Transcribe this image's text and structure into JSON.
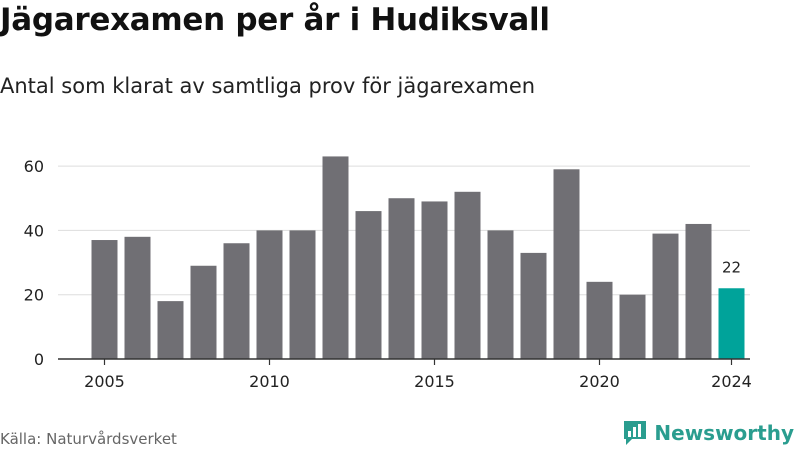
{
  "header": {
    "title": "Jägarexamen per år i Hudiksvall",
    "subtitle": "Antal som klarat av samtliga prov för jägarexamen"
  },
  "footer": {
    "source": "Källa: Naturvårdsverket",
    "brand": "Newsworthy"
  },
  "colors": {
    "bar": "#706f74",
    "highlight": "#00a39a",
    "grid": "#dddddd",
    "axis": "#333333",
    "brand": "#2a9d8f"
  },
  "icons": {
    "brand_logo": "bar-chart-icon"
  },
  "chart_data": {
    "type": "bar",
    "title": "Jägarexamen per år i Hudiksvall",
    "subtitle": "Antal som klarat av samtliga prov för jägarexamen",
    "xlabel": "",
    "ylabel": "",
    "categories": [
      2005,
      2006,
      2007,
      2008,
      2009,
      2010,
      2011,
      2012,
      2013,
      2014,
      2015,
      2016,
      2017,
      2018,
      2019,
      2020,
      2021,
      2022,
      2023,
      2024
    ],
    "values": [
      37,
      38,
      18,
      29,
      36,
      40,
      40,
      63,
      46,
      50,
      49,
      52,
      40,
      33,
      59,
      24,
      20,
      39,
      42,
      22
    ],
    "highlight_category": 2024,
    "highlight_label": "22",
    "ylim": [
      0,
      65
    ],
    "yticks": [
      0,
      20,
      40,
      60
    ],
    "xticks": [
      2005,
      2010,
      2015,
      2020,
      2024
    ],
    "grid": true,
    "legend": "none"
  }
}
